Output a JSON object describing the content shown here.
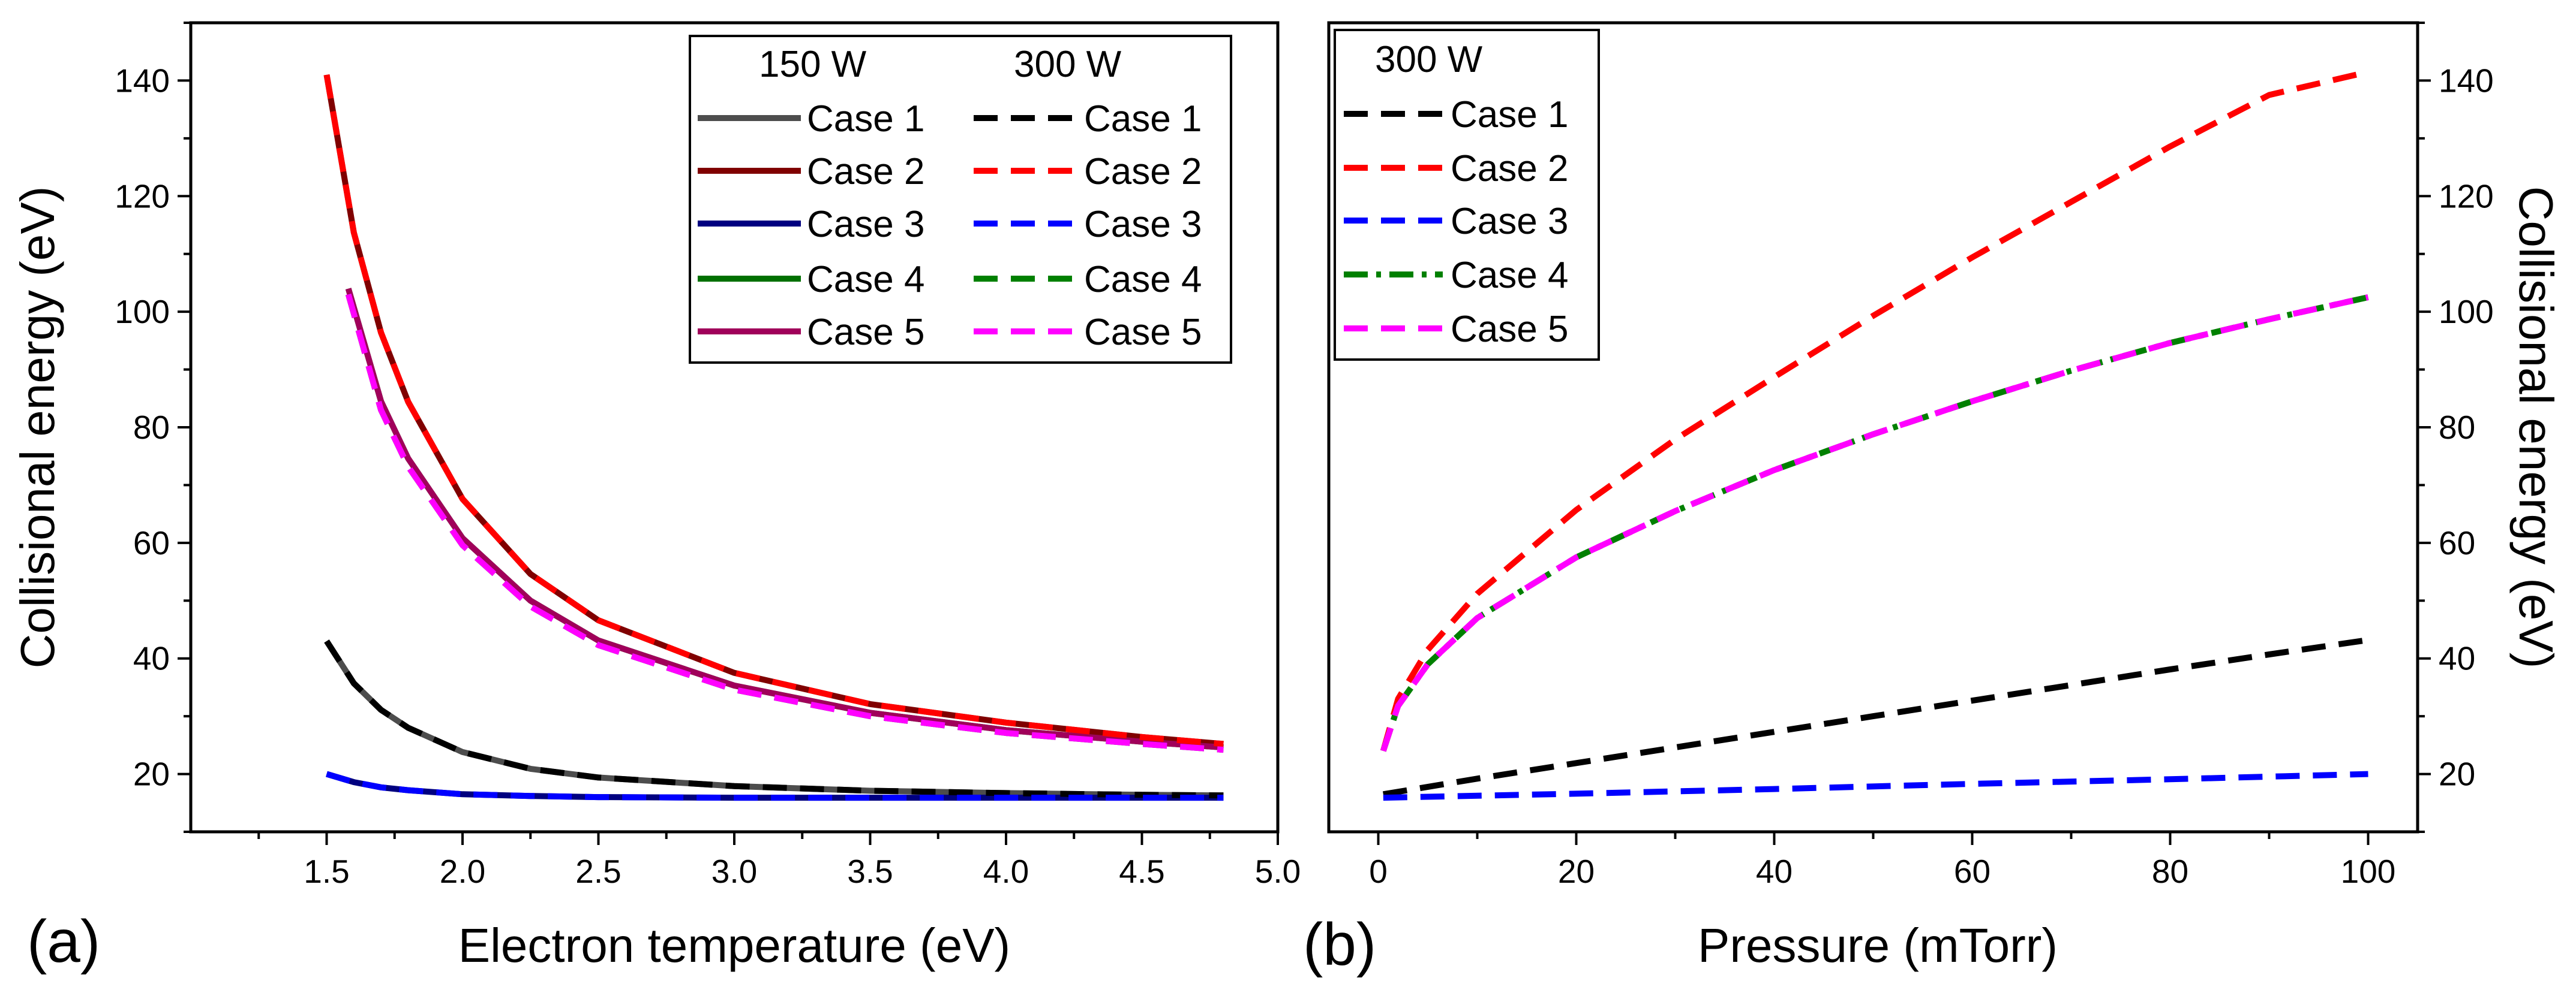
{
  "figure": {
    "panel_labels": [
      "(a)",
      "(b)"
    ]
  },
  "chart_data": [
    {
      "type": "line",
      "panel": "(a)",
      "xlabel": "Electron temperature (eV)",
      "ylabel": "Collisional energy (eV)",
      "xlim": [
        1.0,
        5.0
      ],
      "ylim": [
        10,
        150
      ],
      "xticks": [
        1.5,
        2.0,
        2.5,
        3.0,
        3.5,
        4.0,
        4.5,
        5.0
      ],
      "xtick_labels": [
        "1.5",
        "2.0",
        "2.5",
        "3.0",
        "3.5",
        "4.0",
        "4.5",
        "5.0"
      ],
      "yticks": [
        20,
        40,
        60,
        80,
        100,
        120,
        140
      ],
      "ytick_labels": [
        "20",
        "40",
        "60",
        "80",
        "100",
        "120",
        "140"
      ],
      "legend": {
        "placement": "top-right",
        "column_headers": [
          "150 W",
          "300 W"
        ]
      },
      "series": [
        {
          "name": "Case 1",
          "group": "150 W",
          "style": "solid",
          "color": "#4d4d4d",
          "x": [
            1.5,
            1.6,
            1.7,
            1.8,
            2.0,
            2.25,
            2.5,
            3.0,
            3.5,
            4.0,
            4.5,
            4.8
          ],
          "values": [
            43.0,
            35.7,
            31.1,
            28.0,
            23.8,
            20.9,
            19.4,
            17.9,
            17.1,
            16.7,
            16.4,
            16.3
          ]
        },
        {
          "name": "Case 2",
          "group": "150 W",
          "style": "solid",
          "color": "#800000",
          "x": [
            1.5,
            1.6,
            1.7,
            1.8,
            2.0,
            2.25,
            2.5,
            3.0,
            3.5,
            4.0,
            4.5,
            4.8
          ],
          "values": [
            141.0,
            113.7,
            96.4,
            84.4,
            67.6,
            54.6,
            46.6,
            37.5,
            32.1,
            28.9,
            26.4,
            25.2
          ]
        },
        {
          "name": "Case 3",
          "group": "150 W",
          "style": "solid",
          "color": "#000080",
          "x": [
            1.5,
            1.6,
            1.7,
            1.8,
            2.0,
            2.25,
            2.5,
            3.0,
            3.5,
            4.0,
            4.5,
            4.8
          ],
          "values": [
            20.0,
            18.6,
            17.7,
            17.2,
            16.5,
            16.2,
            16.0,
            15.9,
            15.9,
            15.9,
            15.9,
            15.9
          ]
        },
        {
          "name": "Case 4",
          "group": "150 W",
          "style": "solid",
          "color": "#007000",
          "x": [
            1.58,
            1.7,
            1.8,
            2.0,
            2.25,
            2.5,
            3.0,
            3.5,
            4.0,
            4.5,
            4.8
          ],
          "values": [
            104.0,
            84.5,
            74.6,
            60.8,
            50.0,
            43.1,
            35.3,
            30.6,
            27.6,
            25.6,
            24.6
          ]
        },
        {
          "name": "Case 5",
          "group": "150 W",
          "style": "solid",
          "color": "#a0005a",
          "x": [
            1.58,
            1.7,
            1.8,
            2.0,
            2.25,
            2.5,
            3.0,
            3.5,
            4.0,
            4.5,
            4.8
          ],
          "values": [
            104.0,
            84.5,
            74.6,
            60.8,
            50.0,
            43.1,
            35.3,
            30.6,
            27.6,
            25.6,
            24.6
          ]
        },
        {
          "name": "Case 1",
          "group": "300 W",
          "style": "dashed",
          "color": "#000000",
          "x": [
            1.5,
            1.6,
            1.7,
            1.8,
            2.0,
            2.25,
            2.5,
            3.0,
            3.5,
            4.0,
            4.5,
            4.8
          ],
          "values": [
            43.0,
            35.7,
            31.1,
            28.0,
            23.8,
            20.9,
            19.4,
            17.9,
            17.1,
            16.7,
            16.4,
            16.3
          ]
        },
        {
          "name": "Case 2",
          "group": "300 W",
          "style": "dashed",
          "color": "#ff0000",
          "x": [
            1.5,
            1.6,
            1.7,
            1.8,
            2.0,
            2.25,
            2.5,
            3.0,
            3.5,
            4.0,
            4.5,
            4.8
          ],
          "values": [
            141.0,
            113.7,
            96.4,
            84.4,
            67.6,
            54.6,
            46.6,
            37.5,
            32.1,
            28.9,
            26.4,
            25.2
          ]
        },
        {
          "name": "Case 3",
          "group": "300 W",
          "style": "dashed",
          "color": "#0000ff",
          "x": [
            1.5,
            1.6,
            1.7,
            1.8,
            2.0,
            2.25,
            2.5,
            3.0,
            3.5,
            4.0,
            4.5,
            4.8
          ],
          "values": [
            20.0,
            18.6,
            17.7,
            17.2,
            16.5,
            16.2,
            16.0,
            15.9,
            15.9,
            15.9,
            15.9,
            15.9
          ]
        },
        {
          "name": "Case 4",
          "group": "300 W",
          "style": "dashed",
          "color": "#008000",
          "x": [
            1.58,
            1.7,
            1.8,
            2.0,
            2.25,
            2.5,
            3.0,
            3.5,
            4.0,
            4.5,
            4.8
          ],
          "values": [
            103.0,
            83.0,
            73.2,
            59.6,
            49.0,
            42.3,
            34.6,
            30.0,
            27.1,
            25.2,
            24.2
          ]
        },
        {
          "name": "Case 5",
          "group": "300 W",
          "style": "dashed",
          "color": "#ff00ff",
          "x": [
            1.58,
            1.7,
            1.8,
            2.0,
            2.25,
            2.5,
            3.0,
            3.5,
            4.0,
            4.5,
            4.8
          ],
          "values": [
            103.0,
            83.0,
            73.2,
            59.6,
            49.0,
            42.3,
            34.6,
            30.0,
            27.1,
            25.2,
            24.2
          ]
        }
      ]
    },
    {
      "type": "line",
      "panel": "(b)",
      "xlabel": "Pressure (mTorr)",
      "ylabel": "Collisional energy (eV)",
      "y_axis_side": "right",
      "xlim": [
        -5,
        105
      ],
      "ylim": [
        10,
        150
      ],
      "xticks": [
        0,
        20,
        40,
        60,
        80,
        100
      ],
      "xtick_labels": [
        "0",
        "20",
        "40",
        "60",
        "80",
        "100"
      ],
      "yticks": [
        20,
        40,
        60,
        80,
        100,
        120,
        140
      ],
      "ytick_labels": [
        "20",
        "40",
        "60",
        "80",
        "100",
        "120",
        "140"
      ],
      "legend": {
        "placement": "top-left",
        "column_headers": [
          "300 W"
        ]
      },
      "series": [
        {
          "name": "Case 1",
          "style": "dashed",
          "color": "#000000",
          "x": [
            0.5,
            10,
            20,
            30,
            40,
            50,
            60,
            70,
            80,
            90,
            100
          ],
          "values": [
            16.5,
            19.2,
            21.9,
            24.6,
            27.3,
            30.0,
            32.7,
            35.4,
            38.1,
            40.7,
            43.2
          ]
        },
        {
          "name": "Case 2",
          "style": "dashed",
          "color": "#ff0000",
          "x": [
            0.5,
            2,
            5,
            10,
            20,
            30,
            40,
            50,
            60,
            70,
            80,
            90,
            100
          ],
          "values": [
            24.0,
            33.0,
            41.5,
            51.2,
            65.7,
            77.9,
            88.7,
            99.3,
            109.4,
            119.0,
            128.6,
            137.5,
            141.5
          ]
        },
        {
          "name": "Case 3",
          "style": "dashed",
          "color": "#0000ff",
          "x": [
            0.5,
            20,
            40,
            60,
            80,
            100
          ],
          "values": [
            15.9,
            16.6,
            17.4,
            18.3,
            19.1,
            20.0
          ]
        },
        {
          "name": "Case 4",
          "style": "dashdot",
          "color": "#008000",
          "x": [
            0.5,
            2,
            5,
            10,
            20,
            30,
            40,
            50,
            60,
            70,
            80,
            90,
            100
          ],
          "values": [
            24.0,
            31.8,
            39.0,
            47.0,
            57.5,
            65.5,
            72.6,
            78.8,
            84.5,
            89.8,
            94.6,
            98.7,
            102.5
          ]
        },
        {
          "name": "Case 5",
          "style": "dashed",
          "color": "#ff00ff",
          "x": [
            0.5,
            2,
            5,
            10,
            20,
            30,
            40,
            50,
            60,
            70,
            80,
            90,
            100
          ],
          "values": [
            24.0,
            31.8,
            39.0,
            47.0,
            57.5,
            65.5,
            72.6,
            78.8,
            84.5,
            89.8,
            94.6,
            98.7,
            102.5
          ]
        }
      ]
    }
  ]
}
